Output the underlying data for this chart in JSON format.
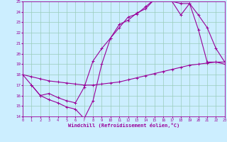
{
  "xlabel": "Windchill (Refroidissement éolien,°C)",
  "bg_color": "#cceeff",
  "line_color": "#990099",
  "grid_color": "#99ccbb",
  "xlim": [
    0,
    23
  ],
  "ylim": [
    14,
    25
  ],
  "xticks": [
    0,
    1,
    2,
    3,
    4,
    5,
    6,
    7,
    8,
    9,
    10,
    11,
    12,
    13,
    14,
    15,
    16,
    17,
    18,
    19,
    20,
    21,
    22,
    23
  ],
  "yticks": [
    14,
    15,
    16,
    17,
    18,
    19,
    20,
    21,
    22,
    23,
    24,
    25
  ],
  "line1_x": [
    0,
    1,
    2,
    3,
    4,
    5,
    6,
    7,
    8,
    9,
    10,
    11,
    12,
    13,
    14,
    15,
    16,
    17,
    18,
    19,
    20,
    21,
    22,
    23
  ],
  "line1_y": [
    18.0,
    17.0,
    16.0,
    15.6,
    15.3,
    14.9,
    14.7,
    13.8,
    15.5,
    19.0,
    21.5,
    22.8,
    23.2,
    23.9,
    24.3,
    25.2,
    25.2,
    25.0,
    24.8,
    24.8,
    22.3,
    19.2,
    19.2,
    19.2
  ],
  "line2_x": [
    0,
    1,
    2,
    3,
    4,
    5,
    6,
    7,
    8,
    9,
    10,
    11,
    12,
    13,
    14,
    15,
    16,
    17,
    18,
    19,
    20,
    21,
    22,
    23
  ],
  "line2_y": [
    18.0,
    17.8,
    17.6,
    17.4,
    17.3,
    17.2,
    17.1,
    17.0,
    17.0,
    17.1,
    17.2,
    17.3,
    17.5,
    17.7,
    17.9,
    18.1,
    18.3,
    18.5,
    18.7,
    18.9,
    19.0,
    19.1,
    19.2,
    19.0
  ],
  "line3_x": [
    1,
    2,
    3,
    4,
    5,
    6,
    7,
    8,
    9,
    10,
    11,
    12,
    13,
    14,
    15,
    16,
    17,
    18,
    19,
    20,
    21,
    22,
    23
  ],
  "line3_y": [
    17.0,
    16.0,
    16.2,
    15.8,
    15.5,
    15.3,
    16.8,
    19.3,
    20.5,
    21.5,
    22.5,
    23.5,
    23.8,
    24.5,
    25.2,
    25.2,
    25.0,
    23.7,
    24.8,
    23.7,
    22.5,
    20.5,
    19.2
  ]
}
